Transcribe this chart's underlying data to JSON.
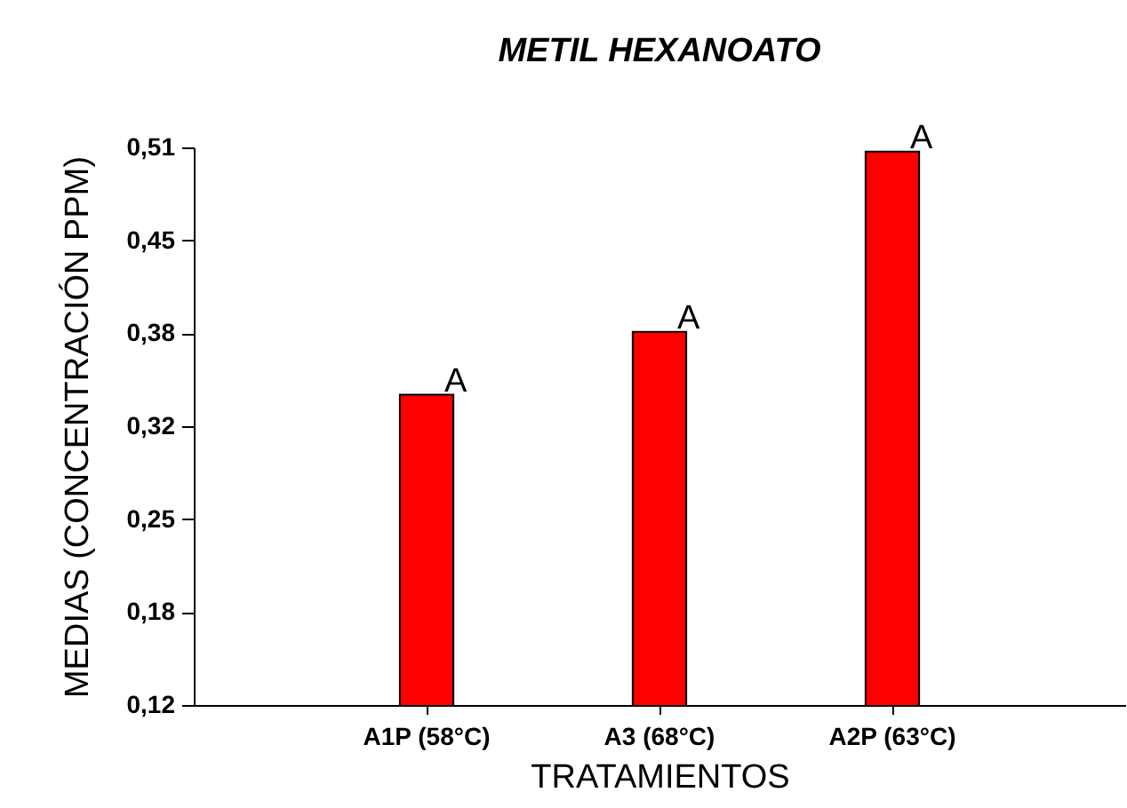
{
  "chart_data": {
    "type": "bar",
    "title": "METIL HEXANOATO",
    "xlabel": "TRATAMIENTOS",
    "ylabel": "MEDIAS (CONCENTRACIÓN PPM)",
    "categories": [
      "A1P (58°C)",
      "A3 (68°C)",
      "A2P (63°C)"
    ],
    "values": [
      0.337,
      0.381,
      0.507
    ],
    "color": "#ff0000",
    "ylim": [
      0.12,
      0.51
    ],
    "yticks": [
      {
        "value": 0.12,
        "label": "0,12"
      },
      {
        "value": 0.185,
        "label": "0,18"
      },
      {
        "value": 0.25,
        "label": "0,25"
      },
      {
        "value": 0.315,
        "label": "0,32"
      },
      {
        "value": 0.38,
        "label": "0,38"
      },
      {
        "value": 0.445,
        "label": "0,45"
      },
      {
        "value": 0.51,
        "label": "0,51"
      }
    ],
    "annotations": [
      {
        "text": "A",
        "x": "A1P (58°C)",
        "y": 0.337
      },
      {
        "text": "A",
        "x": "A3 (68°C)",
        "y": 0.381
      },
      {
        "text": "A",
        "x": "A2P (63°C)",
        "y": 0.507
      }
    ],
    "grid": false
  }
}
